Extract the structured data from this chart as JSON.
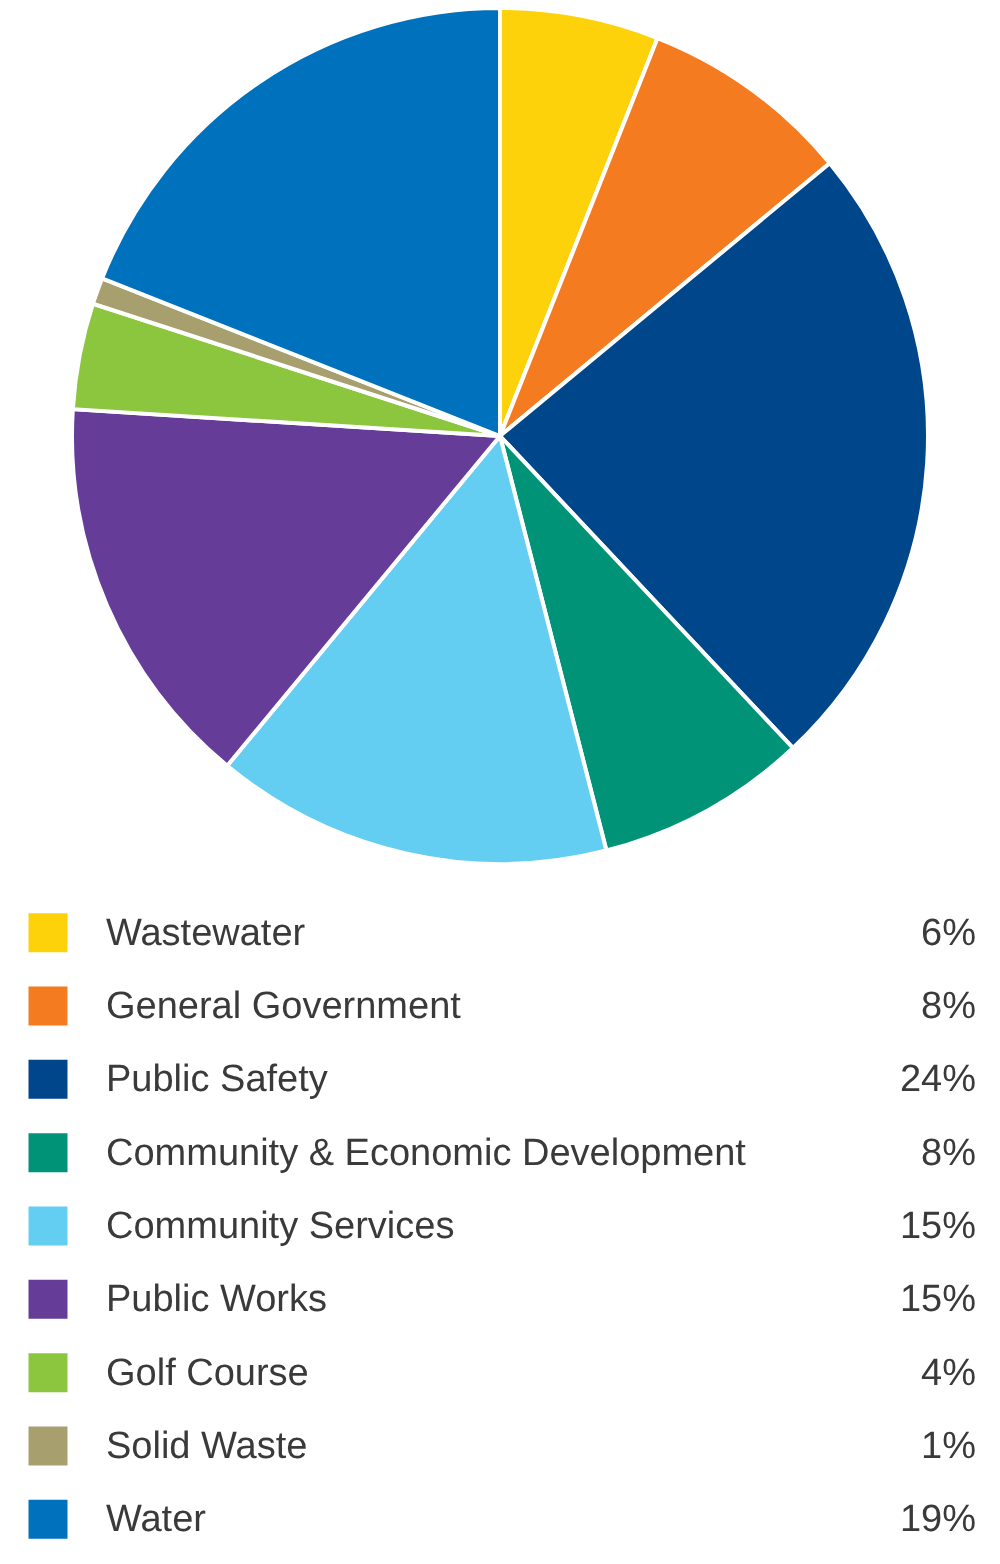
{
  "chart_data": {
    "type": "pie",
    "categories": [
      "Wastewater",
      "General Government",
      "Public Safety",
      "Community & Economic Development",
      "Community Services",
      "Public Works",
      "Golf Course",
      "Solid Waste",
      "Water"
    ],
    "values": [
      6,
      8,
      24,
      8,
      15,
      15,
      4,
      1,
      19
    ],
    "colors": [
      "#fdd20a",
      "#f47b20",
      "#00468b",
      "#009378",
      "#63cef2",
      "#653c97",
      "#8cc63f",
      "#a89f6e",
      "#0071bc"
    ],
    "value_labels": [
      "6%",
      "8%",
      "24%",
      "8%",
      "15%",
      "15%",
      "4%",
      "1%",
      "19%"
    ],
    "legend": "bottom"
  }
}
